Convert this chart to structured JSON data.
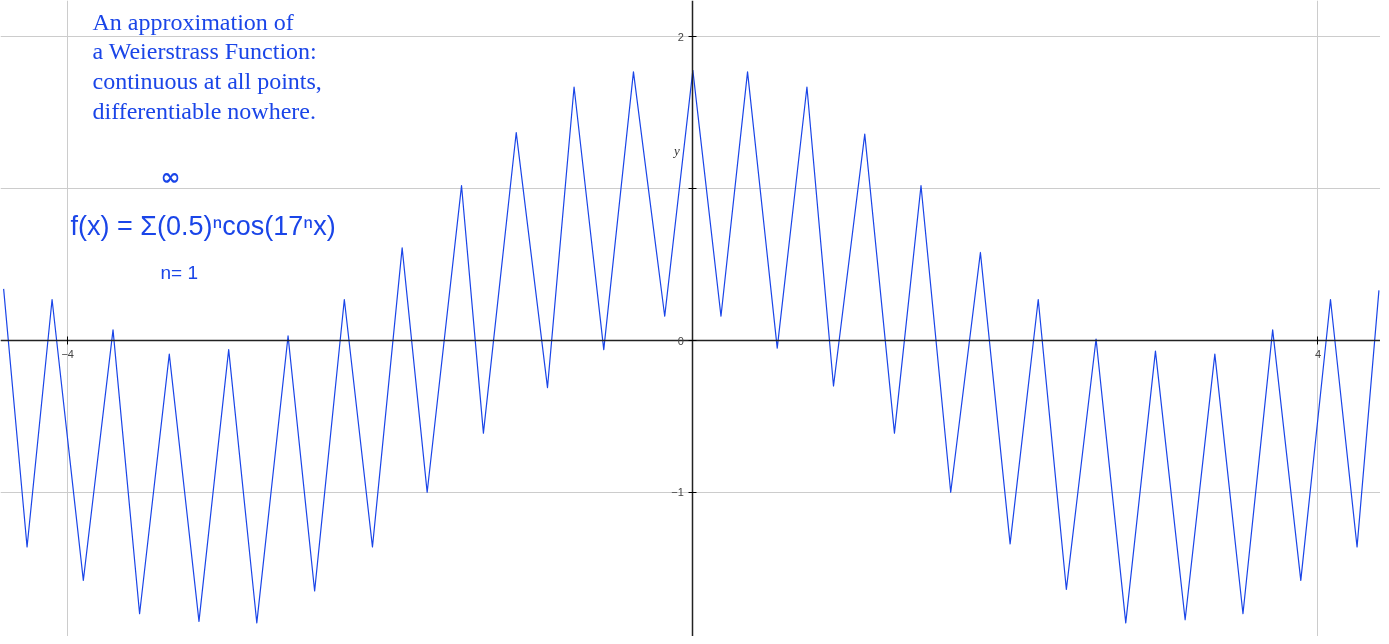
{
  "chart_data": {
    "type": "line",
    "ylabel": "y",
    "annotations": [
      "An approximation of\na Weierstrass Function:\ncontinuous at all points,\ndifferentiable nowhere.",
      "f(x) = Σ(0.5)ⁿcos(17ⁿx)",
      "∞",
      "n= 1"
    ],
    "x": [
      -4.41,
      -4.26,
      -4.1,
      -3.9,
      -3.71,
      -3.54,
      -3.35,
      -3.16,
      -2.97,
      -2.79,
      -2.59,
      -2.42,
      -2.23,
      -2.05,
      -1.86,
      -1.7,
      -1.48,
      -1.34,
      -1.13,
      -0.93,
      -0.76,
      -0.57,
      -0.38,
      -0.18,
      0,
      0.18,
      0.35,
      0.54,
      0.73,
      0.9,
      1.1,
      1.29,
      1.46,
      1.65,
      1.84,
      2.03,
      2.21,
      2.39,
      2.58,
      2.77,
      2.96,
      3.15,
      3.34,
      3.52,
      3.71,
      3.89,
      4.08,
      4.25,
      4.39
    ],
    "series": [
      {
        "color": "#1a45e8",
        "values": [
          0.34,
          -1.36,
          0.27,
          -1.58,
          0.07,
          -1.8,
          -0.09,
          -1.85,
          -0.06,
          -1.86,
          0.03,
          -1.65,
          0.27,
          -1.36,
          0.61,
          -1.0,
          1.02,
          -0.61,
          1.37,
          -0.31,
          1.67,
          -0.06,
          1.77,
          0.16,
          1.78,
          0.16,
          1.77,
          -0.05,
          1.67,
          -0.3,
          1.36,
          -0.61,
          1.02,
          -1.0,
          0.58,
          -1.34,
          0.27,
          -1.64,
          0.01,
          -1.86,
          -0.07,
          -1.84,
          -0.09,
          -1.8,
          0.07,
          -1.58,
          0.27,
          -1.36,
          0.33
        ]
      }
    ],
    "xlim": [
      -4.43,
      4.4
    ],
    "ylim": [
      -1.95,
      2.24
    ],
    "xticks": [
      -4,
      4
    ],
    "yticks": [
      -1,
      0,
      {
        "value": 1,
        "label": null
      },
      2
    ],
    "grid": true,
    "marker": "none",
    "line_style": "solid"
  }
}
